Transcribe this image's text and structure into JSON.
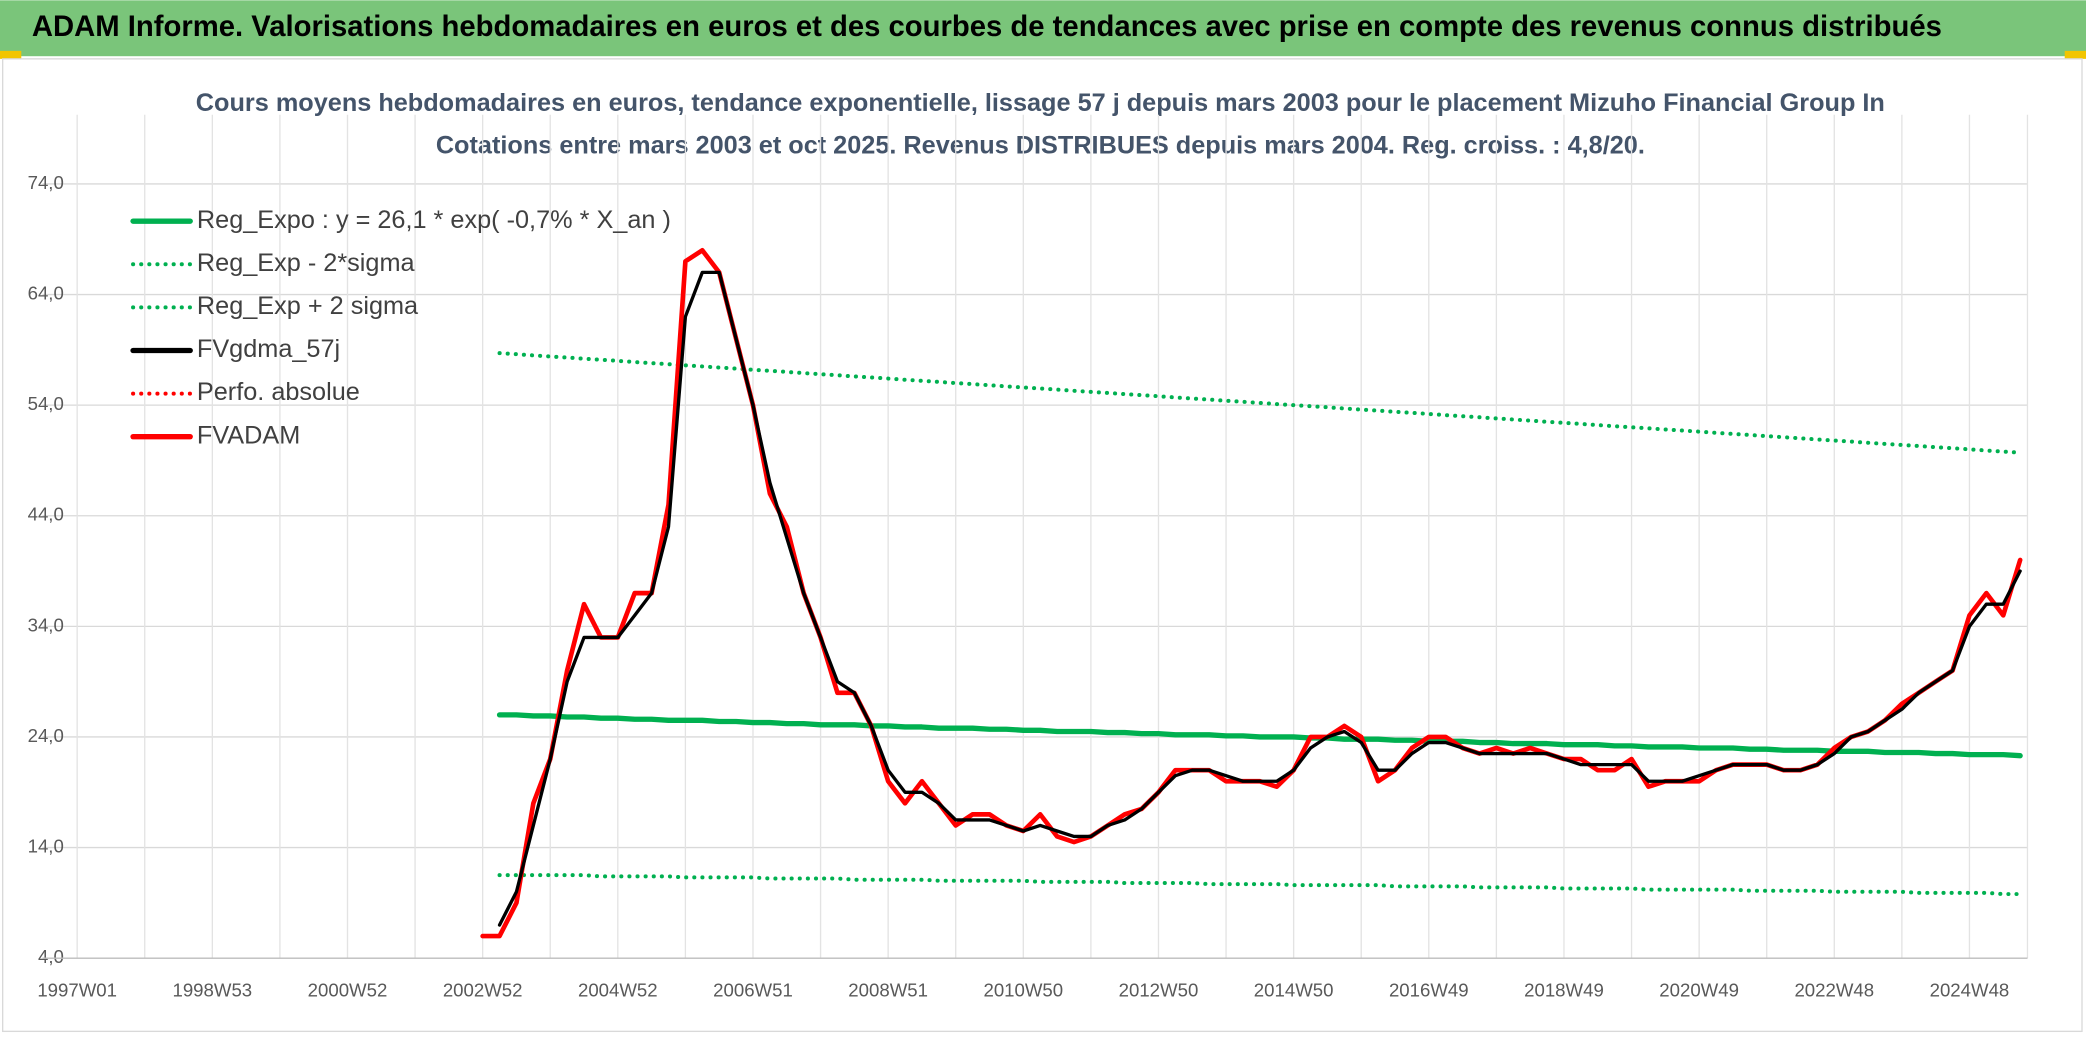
{
  "header": {
    "title": "ADAM Informe. Valorisations hebdomadaires en euros et des courbes de tendances avec prise en compte des revenus connus distribués"
  },
  "chart_data": {
    "type": "line",
    "title": "Cours moyens hebdomadaires en euros, tendance exponentielle, lissage 57 j depuis mars 2003 pour le placement Mizuho Financial Group In",
    "subtitle": "Cotations entre mars 2003 et oct 2025. Revenus DISTRIBUES depuis mars 2004. Reg. croiss. : 4,8/20.",
    "categories": [
      "1997W01",
      null,
      null,
      null,
      null,
      null,
      null,
      null,
      "1998W53",
      null,
      null,
      null,
      null,
      null,
      null,
      null,
      "2000W52",
      null,
      null,
      null,
      null,
      null,
      null,
      null,
      "2002W52",
      null,
      null,
      null,
      null,
      null,
      null,
      null,
      "2004W52",
      null,
      null,
      null,
      null,
      null,
      null,
      null,
      "2006W51",
      null,
      null,
      null,
      null,
      null,
      null,
      null,
      "2008W51",
      null,
      null,
      null,
      null,
      null,
      null,
      null,
      "2010W50",
      null,
      null,
      null,
      null,
      null,
      null,
      null,
      "2012W50",
      null,
      null,
      null,
      null,
      null,
      null,
      null,
      "2014W50",
      null,
      null,
      null,
      null,
      null,
      null,
      null,
      "2016W49",
      null,
      null,
      null,
      null,
      null,
      null,
      null,
      "2018W49",
      null,
      null,
      null,
      null,
      null,
      null,
      null,
      "2020W49",
      null,
      null,
      null,
      null,
      null,
      null,
      null,
      "2022W48",
      null,
      null,
      null,
      null,
      null,
      null,
      null,
      "2024W48",
      null,
      null,
      null
    ],
    "ylim": [
      4,
      74
    ],
    "yticks": [
      {
        "value": 4,
        "label": "4,0"
      },
      {
        "value": 14,
        "label": "14,0"
      },
      {
        "value": 24,
        "label": "24,0"
      },
      {
        "value": 34,
        "label": "34,0"
      },
      {
        "value": 44,
        "label": "44,0"
      },
      {
        "value": 54,
        "label": "54,0"
      },
      {
        "value": 64,
        "label": "64,0"
      },
      {
        "value": 74,
        "label": "74,0"
      }
    ],
    "grid": true,
    "legend": "upper left",
    "series": [
      {
        "name": "Reg_Expo : y = 26,1 * exp( -0,7% *  X_an )",
        "color": "#00b050",
        "style": "solid",
        "values": [
          null,
          null,
          null,
          null,
          null,
          null,
          null,
          null,
          null,
          null,
          null,
          null,
          null,
          null,
          null,
          null,
          null,
          null,
          null,
          null,
          null,
          null,
          null,
          null,
          null,
          26.0,
          26.0,
          25.9,
          25.9,
          25.8,
          25.8,
          25.7,
          25.7,
          25.6,
          25.6,
          25.5,
          25.5,
          25.5,
          25.4,
          25.4,
          25.3,
          25.3,
          25.2,
          25.2,
          25.1,
          25.1,
          25.1,
          25.0,
          25.0,
          24.9,
          24.9,
          24.8,
          24.8,
          24.8,
          24.7,
          24.7,
          24.6,
          24.6,
          24.5,
          24.5,
          24.5,
          24.4,
          24.4,
          24.3,
          24.3,
          24.2,
          24.2,
          24.2,
          24.1,
          24.1,
          24.0,
          24.0,
          24.0,
          23.9,
          23.9,
          23.8,
          23.8,
          23.8,
          23.7,
          23.7,
          23.6,
          23.6,
          23.6,
          23.5,
          23.5,
          23.4,
          23.4,
          23.4,
          23.3,
          23.3,
          23.3,
          23.2,
          23.2,
          23.1,
          23.1,
          23.1,
          23.0,
          23.0,
          23.0,
          22.9,
          22.9,
          22.8,
          22.8,
          22.8,
          22.7,
          22.7,
          22.7,
          22.6,
          22.6,
          22.6,
          22.5,
          22.5,
          22.4,
          22.4,
          22.4,
          22.3
        ]
      },
      {
        "name": "Reg_Exp - 2*sigma",
        "color": "#00b050",
        "style": "dotted",
        "values": [
          null,
          null,
          null,
          null,
          null,
          null,
          null,
          null,
          null,
          null,
          null,
          null,
          null,
          null,
          null,
          null,
          null,
          null,
          null,
          null,
          null,
          null,
          null,
          null,
          null,
          11.5,
          11.5,
          11.5,
          11.5,
          11.5,
          11.5,
          11.4,
          11.4,
          11.4,
          11.4,
          11.4,
          11.3,
          11.3,
          11.3,
          11.3,
          11.3,
          11.2,
          11.2,
          11.2,
          11.2,
          11.2,
          11.1,
          11.1,
          11.1,
          11.1,
          11.1,
          11.0,
          11.0,
          11.0,
          11.0,
          11.0,
          11.0,
          10.9,
          10.9,
          10.9,
          10.9,
          10.9,
          10.8,
          10.8,
          10.8,
          10.8,
          10.8,
          10.7,
          10.7,
          10.7,
          10.7,
          10.7,
          10.6,
          10.6,
          10.6,
          10.6,
          10.6,
          10.6,
          10.5,
          10.5,
          10.5,
          10.5,
          10.5,
          10.4,
          10.4,
          10.4,
          10.4,
          10.4,
          10.3,
          10.3,
          10.3,
          10.3,
          10.3,
          10.2,
          10.2,
          10.2,
          10.2,
          10.2,
          10.2,
          10.1,
          10.1,
          10.1,
          10.1,
          10.1,
          10.0,
          10.0,
          10.0,
          10.0,
          10.0,
          9.9,
          9.9,
          9.9,
          9.9,
          9.9,
          9.8,
          9.8
        ]
      },
      {
        "name": "Reg_Exp + 2 sigma",
        "color": "#00b050",
        "style": "dotted",
        "values": [
          null,
          null,
          null,
          null,
          null,
          null,
          null,
          null,
          null,
          null,
          null,
          null,
          null,
          null,
          null,
          null,
          null,
          null,
          null,
          null,
          null,
          null,
          null,
          null,
          null,
          58.7,
          58.6,
          58.5,
          58.4,
          58.3,
          58.2,
          58.1,
          58.0,
          57.9,
          57.8,
          57.7,
          57.6,
          57.5,
          57.4,
          57.3,
          57.2,
          57.1,
          57.0,
          56.9,
          56.8,
          56.7,
          56.6,
          56.5,
          56.4,
          56.3,
          56.2,
          56.1,
          56.0,
          55.9,
          55.8,
          55.7,
          55.6,
          55.5,
          55.4,
          55.3,
          55.2,
          55.1,
          55.0,
          54.9,
          54.8,
          54.7,
          54.6,
          54.5,
          54.4,
          54.3,
          54.2,
          54.1,
          54.0,
          53.9,
          53.8,
          53.7,
          53.6,
          53.5,
          53.4,
          53.3,
          53.2,
          53.1,
          53.0,
          52.9,
          52.8,
          52.7,
          52.6,
          52.5,
          52.4,
          52.3,
          52.2,
          52.1,
          52.0,
          51.9,
          51.8,
          51.7,
          51.6,
          51.5,
          51.4,
          51.3,
          51.2,
          51.1,
          51.0,
          50.9,
          50.8,
          50.7,
          50.6,
          50.5,
          50.4,
          50.3,
          50.2,
          50.1,
          50.0,
          49.9,
          49.8,
          49.7
        ]
      },
      {
        "name": "FVgdma_57j",
        "color": "#000000",
        "style": "solid",
        "values": [
          null,
          null,
          null,
          null,
          null,
          null,
          null,
          null,
          null,
          null,
          null,
          null,
          null,
          null,
          null,
          null,
          null,
          null,
          null,
          null,
          null,
          null,
          null,
          null,
          null,
          7,
          10,
          16,
          22,
          29,
          33,
          33,
          33,
          35,
          37,
          43,
          62,
          66,
          66,
          60,
          54,
          47,
          42,
          37,
          33,
          29,
          28,
          25,
          21,
          19,
          19,
          18,
          16.5,
          16.5,
          16.5,
          16,
          15.5,
          16,
          15.5,
          15,
          15,
          16,
          16.5,
          17.5,
          19,
          20.5,
          21,
          21,
          20.5,
          20,
          20,
          20,
          21,
          23,
          24,
          24.5,
          23.5,
          21,
          21,
          22.5,
          23.5,
          23.5,
          23,
          22.5,
          22.5,
          22.5,
          22.5,
          22.5,
          22,
          21.5,
          21.5,
          21.5,
          21.5,
          20,
          20,
          20,
          20.5,
          21,
          21.5,
          21.5,
          21.5,
          21,
          21,
          21.5,
          22.5,
          24,
          24.5,
          25.5,
          26.5,
          28,
          29,
          30,
          34,
          36,
          36,
          39
        ]
      },
      {
        "name": "Perfo. absolue",
        "color": "#ff0000",
        "style": "dotted",
        "values": [
          null,
          null,
          null,
          null,
          null,
          null,
          null,
          null,
          null,
          null,
          null,
          null,
          null,
          null,
          null,
          null,
          null,
          null,
          null,
          null,
          null,
          null,
          null,
          null,
          null,
          null,
          null,
          null,
          null,
          null,
          null,
          null,
          null,
          null,
          null,
          null,
          null,
          null,
          null,
          null,
          null,
          null,
          null,
          null,
          null,
          null,
          null,
          null,
          null,
          null,
          null,
          null,
          null,
          null,
          null,
          null,
          null,
          null,
          null,
          null,
          null,
          null,
          null,
          null,
          null,
          null,
          null,
          null,
          null,
          null,
          null,
          null,
          null,
          null,
          null,
          null,
          null,
          null,
          null,
          null,
          null,
          null,
          null,
          null,
          null,
          null,
          null,
          null,
          null,
          null,
          null,
          null,
          null,
          null,
          null,
          null,
          null,
          null,
          null,
          null,
          null,
          null,
          null,
          null,
          null,
          null,
          null,
          null,
          null,
          null,
          null,
          null,
          null,
          null,
          null,
          null
        ]
      },
      {
        "name": "FVADAM",
        "color": "#ff0000",
        "style": "solid",
        "values": [
          null,
          null,
          null,
          null,
          null,
          null,
          null,
          null,
          null,
          null,
          null,
          null,
          null,
          null,
          null,
          null,
          null,
          null,
          null,
          null,
          null,
          null,
          null,
          null,
          6,
          6,
          9,
          18,
          22,
          30,
          36,
          33,
          33,
          37,
          37,
          45,
          67,
          68,
          66,
          60,
          54,
          46,
          43,
          37,
          33,
          28,
          28,
          25,
          20,
          18,
          20,
          18,
          16,
          17,
          17,
          16,
          15.5,
          17,
          15,
          14.5,
          15,
          16,
          17,
          17.5,
          19,
          21,
          21,
          21,
          20,
          20,
          20,
          19.5,
          21,
          24,
          24,
          25,
          24,
          20,
          21,
          23,
          24,
          24,
          23,
          22.5,
          23,
          22.5,
          23,
          22.5,
          22,
          22,
          21,
          21,
          22,
          19.5,
          20,
          20,
          20,
          21,
          21.5,
          21.5,
          21.5,
          21,
          21,
          21.5,
          23,
          24,
          24.5,
          25.5,
          27,
          28,
          29,
          30,
          35,
          37,
          35,
          40
        ]
      }
    ]
  }
}
